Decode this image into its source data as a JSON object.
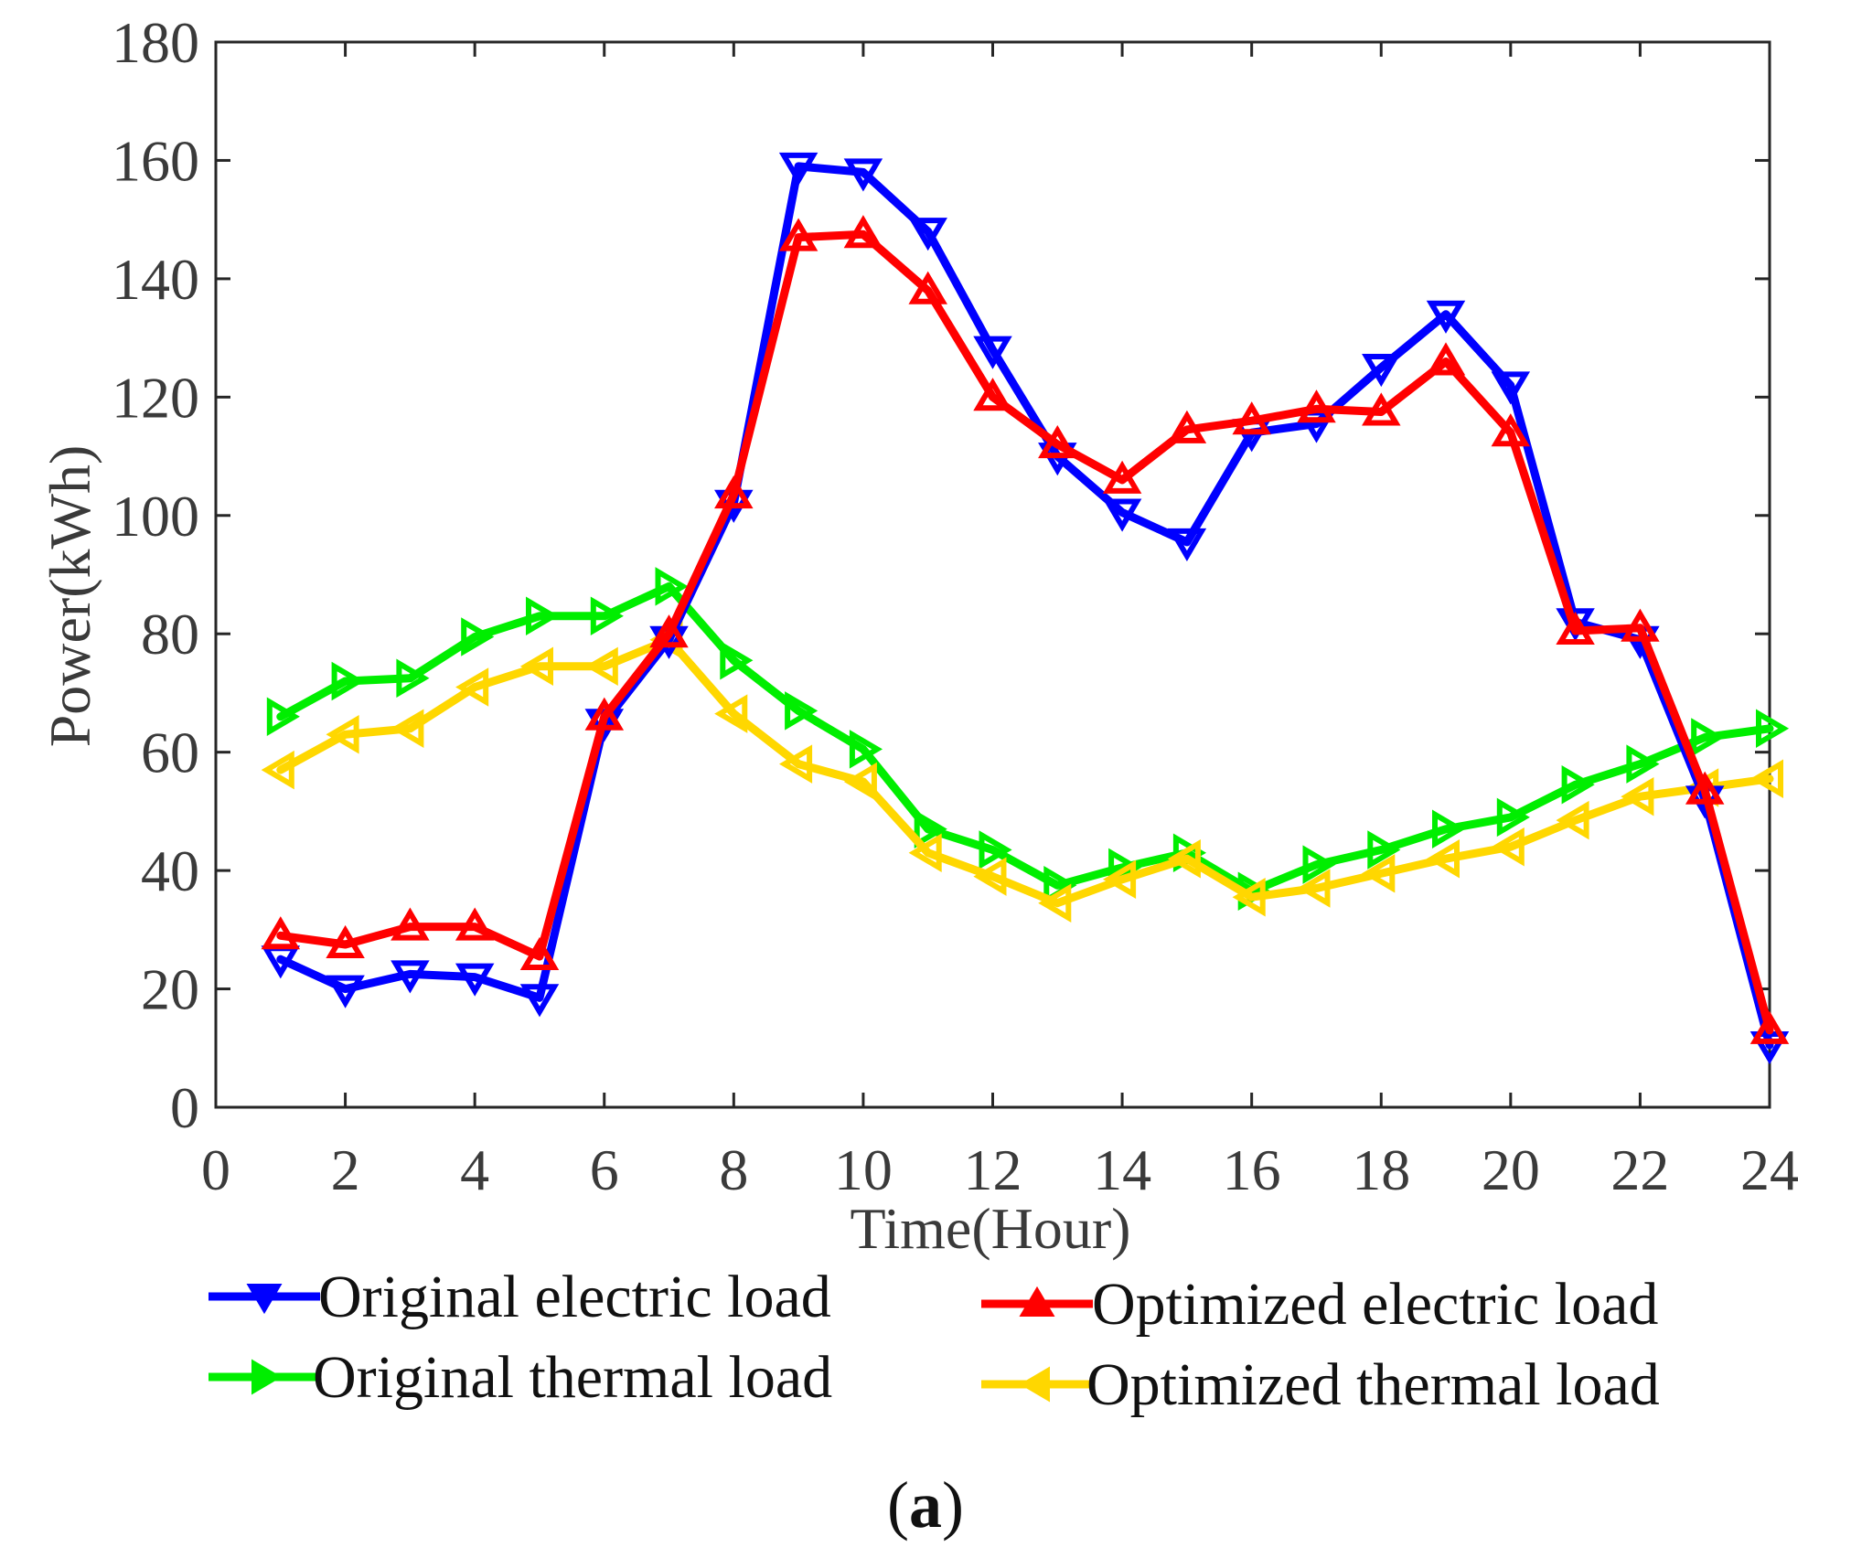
{
  "chart_data": {
    "type": "line",
    "xlabel": "Time(Hour)",
    "ylabel": "Power(kWh)",
    "xlim": [
      0,
      24
    ],
    "ylim": [
      0,
      180
    ],
    "xticks": [
      0,
      2,
      4,
      6,
      8,
      10,
      12,
      14,
      16,
      18,
      20,
      22,
      24
    ],
    "yticks": [
      0,
      20,
      40,
      60,
      80,
      100,
      120,
      140,
      160,
      180
    ],
    "grid": false,
    "legend_position": "bottom",
    "panel_label": {
      "open": "(",
      "letter": "a",
      "close": ")"
    },
    "x": [
      1,
      2,
      3,
      4,
      5,
      6,
      7,
      8,
      9,
      10,
      11,
      12,
      13,
      14,
      15,
      16,
      17,
      18,
      19,
      20,
      21,
      22,
      23,
      24
    ],
    "series": [
      {
        "name": "Original electric load",
        "color": "#0000ff",
        "marker": "triangle-down",
        "values": [
          25,
          20,
          22.5,
          22,
          18.5,
          65,
          79,
          102,
          159,
          158,
          148,
          128,
          110,
          100.5,
          95.5,
          114,
          115.5,
          125,
          134,
          122,
          82,
          79,
          52,
          10.5
        ]
      },
      {
        "name": "Optimized electric load",
        "color": "#ff0000",
        "marker": "triangle-up",
        "values": [
          29,
          27.5,
          30.5,
          30.5,
          25.5,
          66,
          80,
          103.5,
          147,
          147.5,
          138,
          120,
          112,
          106,
          114.5,
          116,
          118,
          117.5,
          126,
          114,
          80.5,
          81,
          53.5,
          13
        ]
      },
      {
        "name": "Original thermal load",
        "color": "#00ee00",
        "marker": "triangle-right",
        "values": [
          66,
          72,
          72.5,
          79.5,
          83,
          83,
          88,
          75.5,
          67,
          60.5,
          47,
          43.5,
          37.5,
          40.5,
          43,
          36.5,
          41,
          43.5,
          47,
          49,
          54.5,
          58,
          62.5,
          64
        ]
      },
      {
        "name": "Optimized thermal load",
        "color": "#ffd700",
        "marker": "triangle-left",
        "values": [
          57,
          63,
          64,
          71,
          74.5,
          74.5,
          79,
          66.5,
          58,
          55,
          43,
          39,
          34.5,
          38.5,
          42,
          35.5,
          37,
          39.5,
          42,
          44,
          48.5,
          52.5,
          54,
          55.5
        ]
      }
    ]
  }
}
